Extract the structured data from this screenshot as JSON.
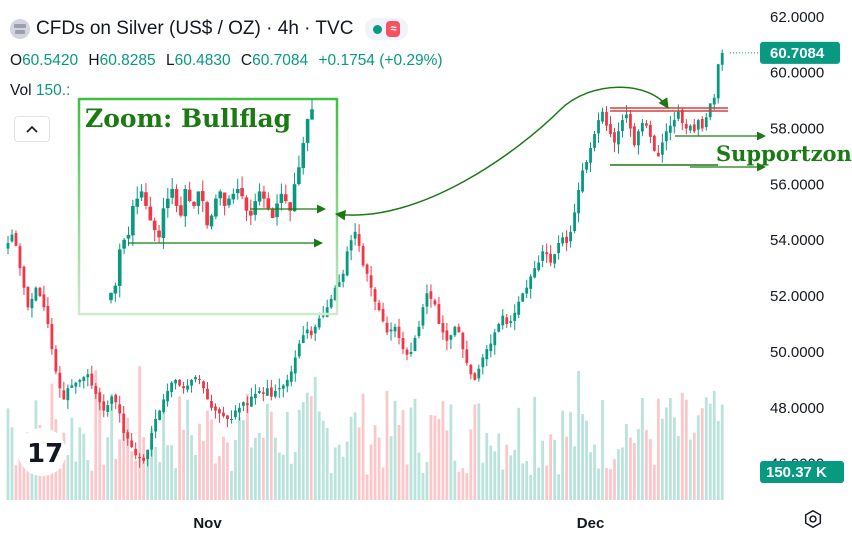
{
  "header": {
    "title": "CFDs on Silver (US$ / OZ) · 4h · TVC",
    "status_icon": "wave-icon"
  },
  "ohlc": {
    "o_label": "O",
    "o_value": "60.5420",
    "h_label": "H",
    "h_value": "60.8285",
    "l_label": "L",
    "l_value": "60.4830",
    "c_label": "C",
    "c_value": "60.7084",
    "change": "+0.1754 (+0.29%)"
  },
  "volume": {
    "label": "Vol",
    "value": "150.:"
  },
  "colors": {
    "up": "#089981",
    "down": "#f23645",
    "annotation": "#1b7a14",
    "zoom_box": "#3fbf3f",
    "resistance": "#d94040"
  },
  "chart_data": {
    "type": "candlestick",
    "title": "CFDs on Silver (US$ / OZ) · 4h · TVC",
    "y_ticks": [
      "62.0000",
      "60.0000",
      "58.0000",
      "56.0000",
      "54.0000",
      "52.0000",
      "50.0000",
      "48.0000",
      "46.0000"
    ],
    "ylim": [
      44.7,
      62.6
    ],
    "x_ticks": [
      {
        "label": "Nov",
        "index": 50
      },
      {
        "label": "Dec",
        "index": 146
      }
    ],
    "last_price": "60.7084",
    "last_volume": "150.37 K",
    "close_series": [
      53.9,
      54.2,
      53.8,
      53.0,
      52.3,
      51.6,
      51.9,
      52.3,
      52.0,
      51.6,
      51.0,
      50.1,
      49.3,
      48.7,
      48.3,
      48.7,
      48.8,
      48.9,
      49.0,
      49.1,
      49.2,
      48.8,
      48.5,
      48.2,
      47.9,
      48.1,
      48.4,
      48.2,
      47.8,
      47.1,
      46.9,
      46.6,
      46.3,
      46.2,
      46.1,
      46.5,
      47.1,
      47.6,
      47.9,
      48.3,
      48.6,
      48.9,
      49.0,
      48.8,
      48.7,
      48.8,
      49.0,
      49.1,
      49.0,
      48.7,
      48.3,
      48.0,
      47.9,
      47.8,
      47.7,
      47.6,
      47.6,
      47.9,
      48.0,
      48.2,
      48.1,
      48.4,
      48.5,
      48.6,
      48.5,
      48.7,
      48.4,
      48.6,
      48.7,
      48.8,
      49.0,
      49.3,
      49.8,
      50.3,
      50.6,
      50.8,
      50.6,
      50.9,
      51.2,
      51.3,
      51.6,
      51.9,
      52.3,
      52.5,
      52.8,
      53.6,
      54.0,
      54.3,
      53.8,
      53.1,
      52.8,
      52.3,
      51.8,
      51.5,
      51.1,
      50.7,
      50.8,
      50.9,
      50.5,
      50.1,
      49.9,
      50.0,
      50.5,
      50.9,
      51.6,
      52.1,
      51.9,
      51.7,
      51.0,
      50.7,
      50.4,
      50.6,
      50.9,
      50.7,
      50.1,
      49.6,
      49.2,
      49.0,
      49.4,
      49.8,
      50.1,
      50.3,
      50.7,
      51.0,
      51.3,
      51.0,
      51.1,
      51.4,
      51.8,
      52.1,
      52.3,
      52.7,
      53.0,
      53.2,
      53.6,
      53.5,
      53.2,
      53.5,
      53.9,
      54.1,
      53.9,
      54.3,
      55.0,
      55.8,
      56.5,
      56.8,
      57.3,
      57.8,
      58.3,
      58.6,
      58.1,
      57.8,
      57.5,
      57.9,
      58.3,
      58.5,
      58.0,
      57.4,
      57.9,
      58.2,
      58.1,
      57.7,
      57.2,
      57.0,
      57.5,
      57.9,
      58.1,
      58.3,
      58.6,
      58.2,
      58.0,
      58.1,
      57.9,
      58.3,
      58.0,
      58.4,
      58.9,
      59.1,
      60.3,
      60.7
    ],
    "annotations": {
      "zoom_label": "Zoom: Bullflag",
      "support_label": "Supportzone"
    }
  }
}
